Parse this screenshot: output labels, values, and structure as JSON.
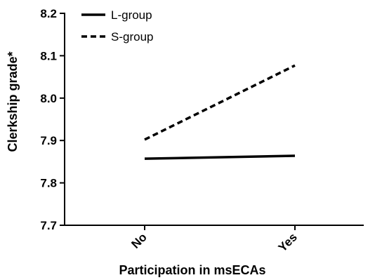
{
  "chart_data": {
    "type": "line",
    "categories": [
      "No",
      "Yes"
    ],
    "series": [
      {
        "name": "L-group",
        "values": [
          7.857,
          7.864
        ],
        "dash": "solid",
        "color": "#000000"
      },
      {
        "name": "S-group",
        "values": [
          7.902,
          8.077
        ],
        "dash": "dashed",
        "color": "#000000"
      }
    ],
    "xlabel": "Participation in msECAs",
    "ylabel": "Clerkship grade*",
    "ylim": [
      7.7,
      8.2
    ],
    "yticks": [
      "7.7",
      "7.8",
      "7.9",
      "8.0",
      "8.1",
      "8.2"
    ],
    "grid": false,
    "legend_position": "top-left"
  }
}
